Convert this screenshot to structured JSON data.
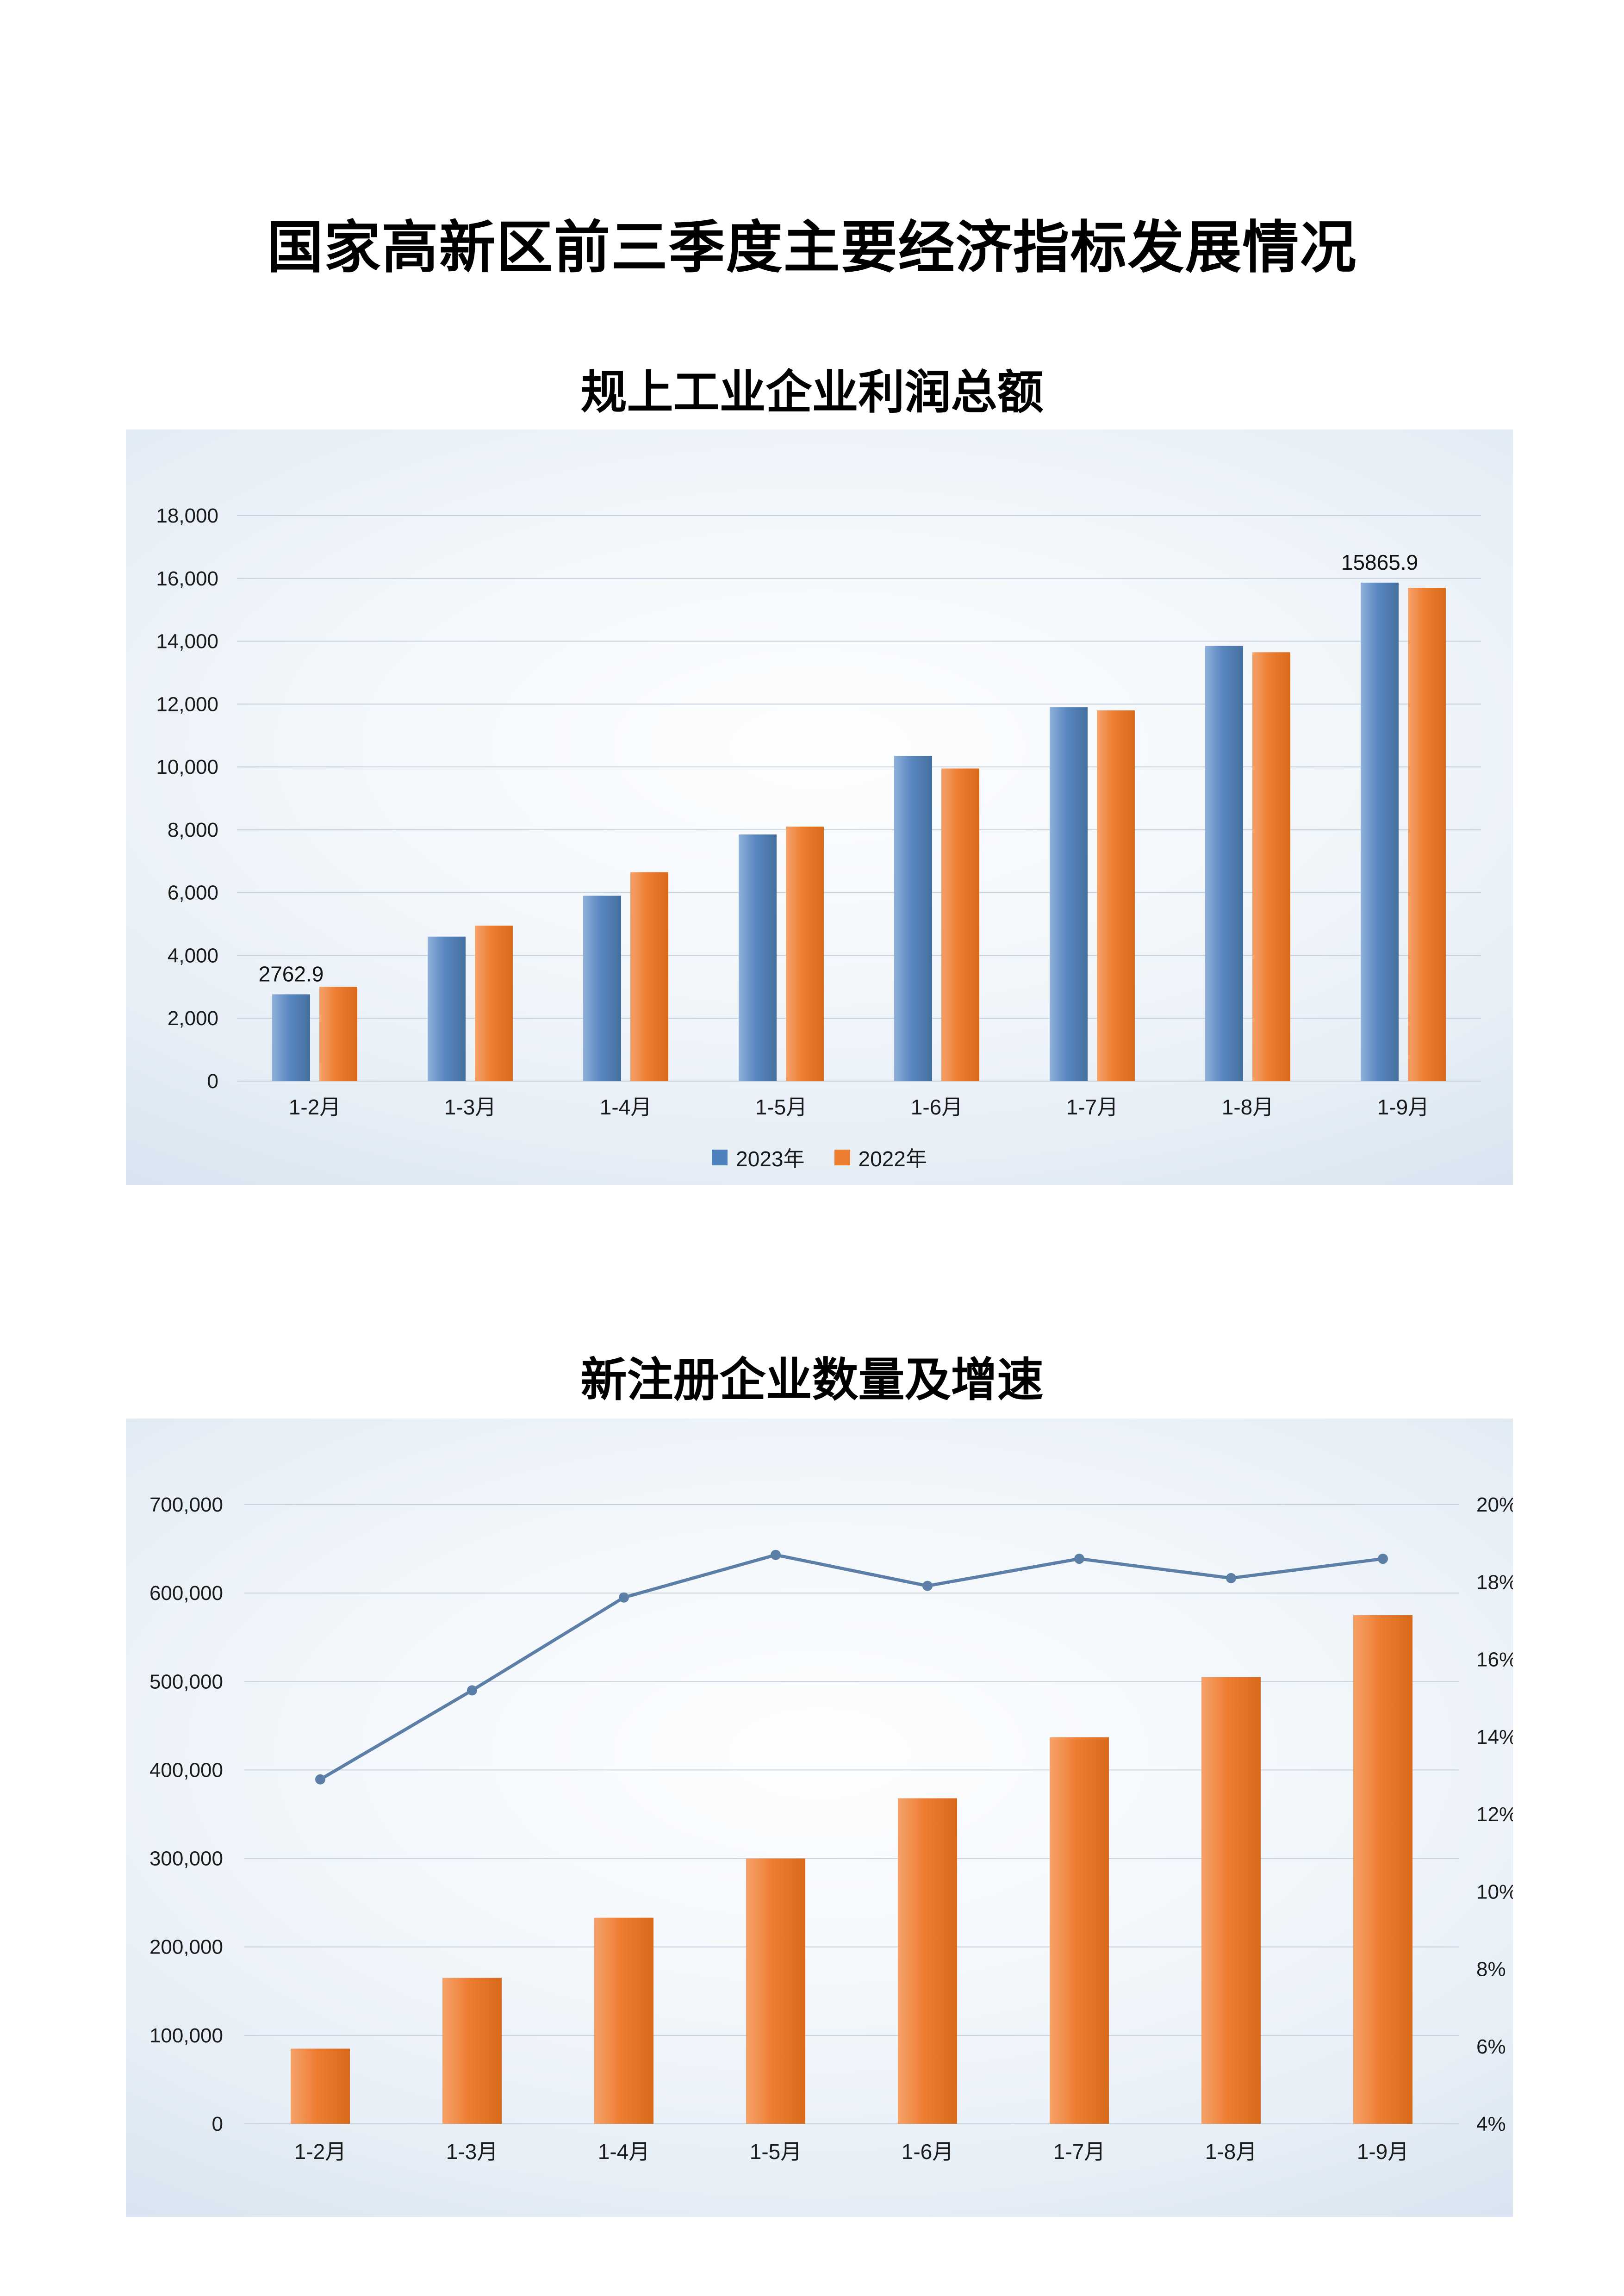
{
  "page": {
    "title": "国家高新区前三季度主要经济指标发展情况"
  },
  "chart_data": [
    {
      "type": "bar",
      "title": "规上工业企业利润总额",
      "categories": [
        "1-2月",
        "1-3月",
        "1-4月",
        "1-5月",
        "1-6月",
        "1-7月",
        "1-8月",
        "1-9月"
      ],
      "series": [
        {
          "name": "2023年",
          "color": "#4f81bd",
          "values": [
            2762.9,
            4600,
            5900,
            7850,
            10350,
            11900,
            13850,
            15865.9
          ]
        },
        {
          "name": "2022年",
          "color": "#ed7d31",
          "values": [
            3000,
            4950,
            6650,
            8100,
            9950,
            11800,
            13650,
            15700
          ]
        }
      ],
      "ylim": [
        0,
        18000
      ],
      "ytick_step": 2000,
      "grid": true,
      "legend_position": "bottom",
      "data_labels": [
        {
          "series": 0,
          "index": 0,
          "text": "2762.9"
        },
        {
          "series": 0,
          "index": 7,
          "text": "15865.9"
        }
      ]
    },
    {
      "type": "combo_bar_line",
      "title": "新注册企业数量及增速",
      "categories": [
        "1-2月",
        "1-3月",
        "1-4月",
        "1-5月",
        "1-6月",
        "1-7月",
        "1-8月",
        "1-9月"
      ],
      "bar_series": {
        "color": "#ed7d31",
        "values": [
          85000,
          165000,
          233000,
          300000,
          368000,
          437000,
          505000,
          575000
        ]
      },
      "line_series": {
        "color": "#5b7fa6",
        "values": [
          12.9,
          15.2,
          17.6,
          18.7,
          17.9,
          18.6,
          18.1,
          18.6
        ]
      },
      "left_ylim": [
        0,
        700000
      ],
      "left_tick_step": 100000,
      "right_ylim": [
        4,
        20
      ],
      "right_tick_step": 2,
      "right_tick_suffix": "%",
      "grid": true
    }
  ]
}
